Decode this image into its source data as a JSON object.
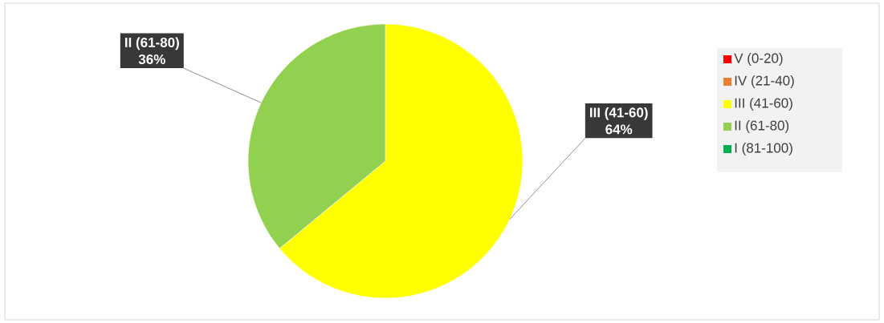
{
  "chart_data": {
    "type": "pie",
    "categories": [
      "V (0-20)",
      "IV (21-40)",
      "III (41-60)",
      "II (61-80)",
      "I (81-100)"
    ],
    "values": [
      0,
      0,
      64,
      36,
      0
    ],
    "colors": [
      "#ff0000",
      "#ed7d31",
      "#ffff00",
      "#92d050",
      "#00b050"
    ],
    "value_labels": [
      null,
      null,
      "64%",
      "36%",
      null
    ],
    "legend": "right"
  }
}
